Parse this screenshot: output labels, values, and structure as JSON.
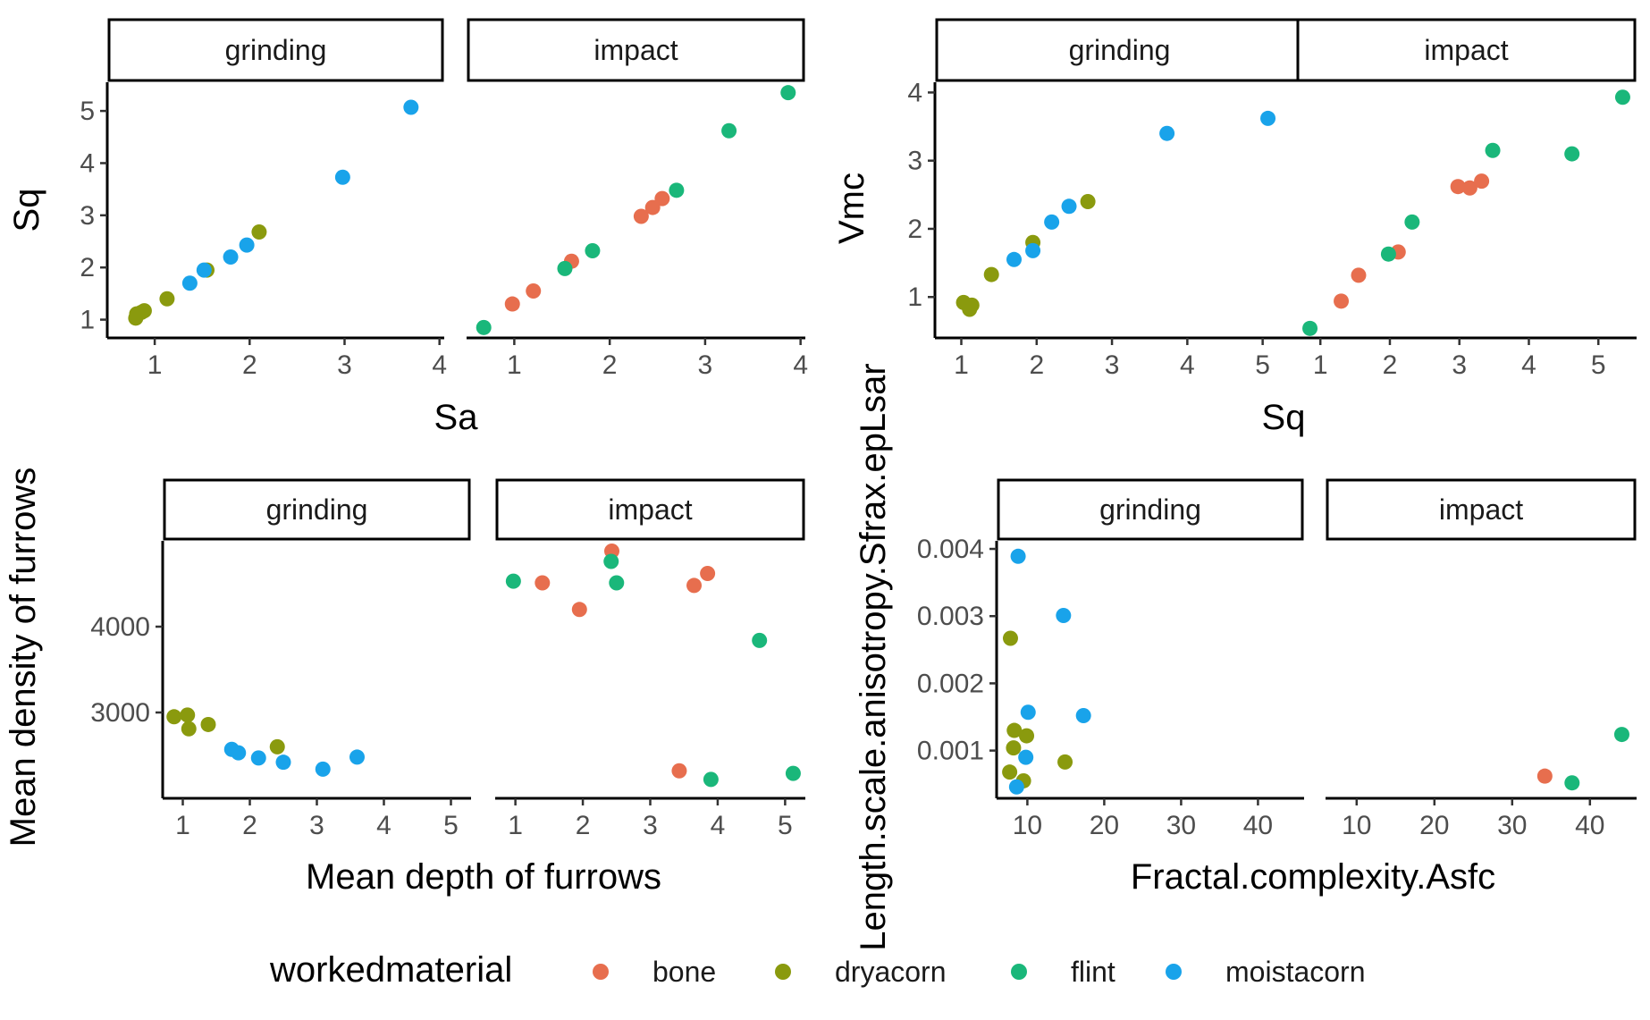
{
  "chart_data": [
    {
      "type": "scatter",
      "xlabel": "Sa",
      "ylabel": "Sq",
      "facets": [
        "grinding",
        "impact"
      ],
      "xlim": [
        0.5,
        4.05
      ],
      "ylim": [
        0.65,
        5.55
      ],
      "x_ticks": [
        "1",
        "2",
        "3",
        "4"
      ],
      "y_ticks": [
        "1",
        "2",
        "3",
        "4",
        "5"
      ],
      "points": [
        {
          "facet": "grinding",
          "series": "dryacorn",
          "x": 0.8,
          "y": 1.03
        },
        {
          "facet": "grinding",
          "series": "dryacorn",
          "x": 0.81,
          "y": 1.11
        },
        {
          "facet": "grinding",
          "series": "dryacorn",
          "x": 0.86,
          "y": 1.14
        },
        {
          "facet": "grinding",
          "series": "dryacorn",
          "x": 0.89,
          "y": 1.17
        },
        {
          "facet": "grinding",
          "series": "dryacorn",
          "x": 1.13,
          "y": 1.4
        },
        {
          "facet": "grinding",
          "series": "dryacorn",
          "x": 1.55,
          "y": 1.95
        },
        {
          "facet": "grinding",
          "series": "dryacorn",
          "x": 2.1,
          "y": 2.68
        },
        {
          "facet": "grinding",
          "series": "moistacorn",
          "x": 1.37,
          "y": 1.7
        },
        {
          "facet": "grinding",
          "series": "moistacorn",
          "x": 1.52,
          "y": 1.95
        },
        {
          "facet": "grinding",
          "series": "moistacorn",
          "x": 1.8,
          "y": 2.2
        },
        {
          "facet": "grinding",
          "series": "moistacorn",
          "x": 1.97,
          "y": 2.43
        },
        {
          "facet": "grinding",
          "series": "moistacorn",
          "x": 2.98,
          "y": 3.73
        },
        {
          "facet": "grinding",
          "series": "moistacorn",
          "x": 3.7,
          "y": 5.07
        },
        {
          "facet": "impact",
          "series": "bone",
          "x": 0.98,
          "y": 1.3
        },
        {
          "facet": "impact",
          "series": "bone",
          "x": 1.2,
          "y": 1.55
        },
        {
          "facet": "impact",
          "series": "bone",
          "x": 1.6,
          "y": 2.12
        },
        {
          "facet": "impact",
          "series": "bone",
          "x": 2.33,
          "y": 2.98
        },
        {
          "facet": "impact",
          "series": "bone",
          "x": 2.45,
          "y": 3.15
        },
        {
          "facet": "impact",
          "series": "bone",
          "x": 2.55,
          "y": 3.32
        },
        {
          "facet": "impact",
          "series": "flint",
          "x": 0.68,
          "y": 0.85
        },
        {
          "facet": "impact",
          "series": "flint",
          "x": 1.53,
          "y": 1.98
        },
        {
          "facet": "impact",
          "series": "flint",
          "x": 1.82,
          "y": 2.32
        },
        {
          "facet": "impact",
          "series": "flint",
          "x": 2.7,
          "y": 3.48
        },
        {
          "facet": "impact",
          "series": "flint",
          "x": 3.25,
          "y": 4.62
        },
        {
          "facet": "impact",
          "series": "flint",
          "x": 3.87,
          "y": 5.35
        }
      ]
    },
    {
      "type": "scatter",
      "xlabel": "Sq",
      "ylabel": "Vmc",
      "facets": [
        "grinding",
        "impact"
      ],
      "xlim": [
        0.65,
        5.55
      ],
      "ylim": [
        0.4,
        4.15
      ],
      "x_ticks": [
        "1",
        "2",
        "3",
        "4",
        "5"
      ],
      "y_ticks": [
        "1",
        "2",
        "3",
        "4"
      ],
      "points": [
        {
          "facet": "grinding",
          "series": "dryacorn",
          "x": 1.03,
          "y": 0.92
        },
        {
          "facet": "grinding",
          "series": "dryacorn",
          "x": 1.11,
          "y": 0.82
        },
        {
          "facet": "grinding",
          "series": "dryacorn",
          "x": 1.14,
          "y": 0.88
        },
        {
          "facet": "grinding",
          "series": "dryacorn",
          "x": 1.4,
          "y": 1.33
        },
        {
          "facet": "grinding",
          "series": "dryacorn",
          "x": 1.95,
          "y": 1.8
        },
        {
          "facet": "grinding",
          "series": "dryacorn",
          "x": 2.68,
          "y": 2.4
        },
        {
          "facet": "grinding",
          "series": "moistacorn",
          "x": 1.7,
          "y": 1.55
        },
        {
          "facet": "grinding",
          "series": "moistacorn",
          "x": 1.95,
          "y": 1.68
        },
        {
          "facet": "grinding",
          "series": "moistacorn",
          "x": 2.2,
          "y": 2.1
        },
        {
          "facet": "grinding",
          "series": "moistacorn",
          "x": 2.43,
          "y": 2.33
        },
        {
          "facet": "grinding",
          "series": "moistacorn",
          "x": 3.73,
          "y": 3.4
        },
        {
          "facet": "grinding",
          "series": "moistacorn",
          "x": 5.07,
          "y": 3.62
        },
        {
          "facet": "impact",
          "series": "bone",
          "x": 1.3,
          "y": 0.94
        },
        {
          "facet": "impact",
          "series": "bone",
          "x": 1.55,
          "y": 1.32
        },
        {
          "facet": "impact",
          "series": "bone",
          "x": 2.12,
          "y": 1.66
        },
        {
          "facet": "impact",
          "series": "bone",
          "x": 2.98,
          "y": 2.62
        },
        {
          "facet": "impact",
          "series": "bone",
          "x": 3.15,
          "y": 2.6
        },
        {
          "facet": "impact",
          "series": "bone",
          "x": 3.32,
          "y": 2.7
        },
        {
          "facet": "impact",
          "series": "flint",
          "x": 0.85,
          "y": 0.54
        },
        {
          "facet": "impact",
          "series": "flint",
          "x": 1.98,
          "y": 1.63
        },
        {
          "facet": "impact",
          "series": "flint",
          "x": 2.32,
          "y": 2.1
        },
        {
          "facet": "impact",
          "series": "flint",
          "x": 3.48,
          "y": 3.15
        },
        {
          "facet": "impact",
          "series": "flint",
          "x": 4.62,
          "y": 3.1
        },
        {
          "facet": "impact",
          "series": "flint",
          "x": 5.35,
          "y": 3.93
        }
      ]
    },
    {
      "type": "scatter",
      "xlabel": "Mean depth of furrows",
      "ylabel": "Mean density of furrows",
      "facets": [
        "grinding",
        "impact"
      ],
      "xlim": [
        0.7,
        5.3
      ],
      "ylim": [
        2000,
        5000
      ],
      "x_ticks": [
        "1",
        "2",
        "3",
        "4",
        "5"
      ],
      "y_ticks": [
        "3000",
        "4000"
      ],
      "points": [
        {
          "facet": "grinding",
          "series": "dryacorn",
          "x": 0.87,
          "y": 2950
        },
        {
          "facet": "grinding",
          "series": "dryacorn",
          "x": 1.07,
          "y": 2970
        },
        {
          "facet": "grinding",
          "series": "dryacorn",
          "x": 1.09,
          "y": 2810
        },
        {
          "facet": "grinding",
          "series": "dryacorn",
          "x": 1.38,
          "y": 2860
        },
        {
          "facet": "grinding",
          "series": "dryacorn",
          "x": 2.41,
          "y": 2600
        },
        {
          "facet": "grinding",
          "series": "moistacorn",
          "x": 1.73,
          "y": 2570
        },
        {
          "facet": "grinding",
          "series": "moistacorn",
          "x": 1.83,
          "y": 2530
        },
        {
          "facet": "grinding",
          "series": "moistacorn",
          "x": 2.13,
          "y": 2470
        },
        {
          "facet": "grinding",
          "series": "moistacorn",
          "x": 2.5,
          "y": 2420
        },
        {
          "facet": "grinding",
          "series": "moistacorn",
          "x": 3.09,
          "y": 2340
        },
        {
          "facet": "grinding",
          "series": "moistacorn",
          "x": 3.6,
          "y": 2480
        },
        {
          "facet": "impact",
          "series": "bone",
          "x": 1.4,
          "y": 4510
        },
        {
          "facet": "impact",
          "series": "bone",
          "x": 1.95,
          "y": 4200
        },
        {
          "facet": "impact",
          "series": "bone",
          "x": 2.43,
          "y": 4880
        },
        {
          "facet": "impact",
          "series": "bone",
          "x": 3.43,
          "y": 2320
        },
        {
          "facet": "impact",
          "series": "bone",
          "x": 3.65,
          "y": 4480
        },
        {
          "facet": "impact",
          "series": "bone",
          "x": 3.85,
          "y": 4620
        },
        {
          "facet": "impact",
          "series": "flint",
          "x": 0.97,
          "y": 4530
        },
        {
          "facet": "impact",
          "series": "flint",
          "x": 2.42,
          "y": 4760
        },
        {
          "facet": "impact",
          "series": "flint",
          "x": 2.5,
          "y": 4510
        },
        {
          "facet": "impact",
          "series": "flint",
          "x": 3.9,
          "y": 2220
        },
        {
          "facet": "impact",
          "series": "flint",
          "x": 4.62,
          "y": 3840
        },
        {
          "facet": "impact",
          "series": "flint",
          "x": 5.12,
          "y": 2290
        }
      ]
    },
    {
      "type": "scatter",
      "xlabel": "Fractal.complexity.Asfc",
      "ylabel": "Length.scale.anisotropy.Sfrax.epLsar",
      "facets": [
        "grinding",
        "impact"
      ],
      "xlim": [
        6,
        46
      ],
      "ylim": [
        0.00029,
        0.00412
      ],
      "x_ticks": [
        "10",
        "20",
        "30",
        "40"
      ],
      "y_ticks": [
        "0.001",
        "0.002",
        "0.003",
        "0.004"
      ],
      "points": [
        {
          "facet": "grinding",
          "series": "dryacorn",
          "x": 7.8,
          "y": 0.00267
        },
        {
          "facet": "grinding",
          "series": "dryacorn",
          "x": 8.3,
          "y": 0.0013
        },
        {
          "facet": "grinding",
          "series": "dryacorn",
          "x": 8.2,
          "y": 0.00104
        },
        {
          "facet": "grinding",
          "series": "dryacorn",
          "x": 7.7,
          "y": 0.00068
        },
        {
          "facet": "grinding",
          "series": "dryacorn",
          "x": 9.5,
          "y": 0.00055
        },
        {
          "facet": "grinding",
          "series": "dryacorn",
          "x": 9.9,
          "y": 0.00122
        },
        {
          "facet": "grinding",
          "series": "dryacorn",
          "x": 14.9,
          "y": 0.00083
        },
        {
          "facet": "grinding",
          "series": "moistacorn",
          "x": 8.8,
          "y": 0.00389
        },
        {
          "facet": "grinding",
          "series": "moistacorn",
          "x": 14.7,
          "y": 0.00301
        },
        {
          "facet": "grinding",
          "series": "moistacorn",
          "x": 10.1,
          "y": 0.00157
        },
        {
          "facet": "grinding",
          "series": "moistacorn",
          "x": 17.3,
          "y": 0.00152
        },
        {
          "facet": "grinding",
          "series": "moistacorn",
          "x": 9.8,
          "y": 0.0009
        },
        {
          "facet": "grinding",
          "series": "moistacorn",
          "x": 8.6,
          "y": 0.00046
        },
        {
          "facet": "impact",
          "series": "bone",
          "x": 34.2,
          "y": 0.00062
        },
        {
          "facet": "impact",
          "series": "flint",
          "x": 37.7,
          "y": 0.00052
        },
        {
          "facet": "impact",
          "series": "flint",
          "x": 44.1,
          "y": 0.00124
        }
      ]
    }
  ],
  "legend": {
    "title": "workedmaterial",
    "entries": [
      {
        "label": "bone",
        "color": "#E76E4E"
      },
      {
        "label": "dryacorn",
        "color": "#8A9A0E"
      },
      {
        "label": "flint",
        "color": "#1AB77A"
      },
      {
        "label": "moistacorn",
        "color": "#19A3EA"
      }
    ]
  }
}
